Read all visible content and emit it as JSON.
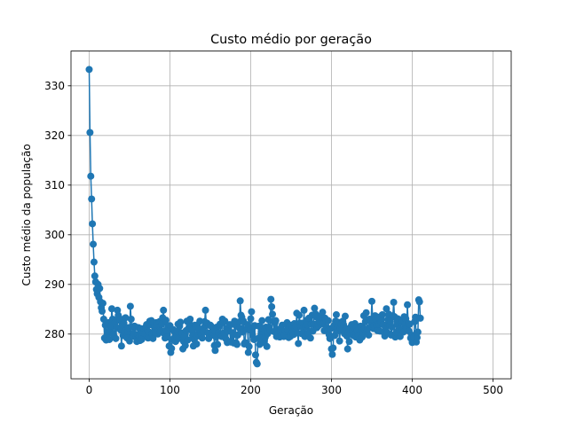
{
  "chart_data": {
    "type": "line",
    "title": "Custo médio por geração",
    "xlabel": "Geração",
    "ylabel": "Custo médio da população",
    "xlim": [
      -22.5,
      522.5
    ],
    "ylim": [
      271,
      337
    ],
    "xticks": [
      0,
      100,
      200,
      300,
      400,
      500
    ],
    "yticks": [
      280,
      290,
      300,
      310,
      320,
      330
    ],
    "grid": true,
    "marker": "circle",
    "color": "#1f77b4",
    "series": [
      {
        "values": [
          333.3,
          320.6,
          311.8,
          307.2,
          302.2,
          298.1,
          294.5,
          291.7,
          290.5,
          289.0,
          288.1,
          290.0,
          287.4,
          289.2,
          286.5,
          285.3,
          284.6,
          286.2,
          283.0,
          279.2,
          281.8,
          278.8,
          279.6,
          280.5,
          282.3,
          278.9,
          280.9,
          281.7,
          285.1,
          283.0,
          280.0,
          279.5,
          282.3,
          279.1,
          281.3,
          284.8,
          283.8,
          283.3,
          282.7,
          280.8,
          277.6,
          281.9,
          279.7,
          282.2,
          280.6,
          283.3,
          279.4,
          279.2,
          280.6,
          281.3,
          278.6,
          285.6,
          283.0,
          281.5,
          279.6,
          280.2,
          281.6,
          281.5,
          279.3,
          278.5,
          279.9,
          281.3,
          279.5,
          278.7,
          281.1,
          278.9,
          279.8,
          280.2,
          281.1,
          280.1,
          281.2,
          281.9,
          280.7,
          279.2,
          280.4,
          282.6,
          281.9,
          282.7,
          280.1,
          279.1,
          280.4,
          281.6,
          280.2,
          282.3,
          281.9,
          280.0,
          280.6,
          282.5,
          280.4,
          280.7,
          282.0,
          283.3,
          284.8,
          280.1,
          279.2,
          282.8,
          280.7,
          279.4,
          281.5,
          277.6,
          281.7,
          276.3,
          277.1,
          278.9,
          280.9,
          280.6,
          279.4,
          278.5,
          279.6,
          280.6,
          282.0,
          279.1,
          281.6,
          282.4,
          280.0,
          280.2,
          277.0,
          278.5,
          279.6,
          277.7,
          280.7,
          282.6,
          278.8,
          281.1,
          282.5,
          283.0,
          281.5,
          280.7,
          279.7,
          277.6,
          278.9,
          281.8,
          281.6,
          278.0,
          279.6,
          280.1,
          280.9,
          282.6,
          280.2,
          279.8,
          279.2,
          280.5,
          281.3,
          282.5,
          284.8,
          281.8,
          282.2,
          280.2,
          279.1,
          279.5,
          281.8,
          281.6,
          279.8,
          280.3,
          280.8,
          277.7,
          276.7,
          279.4,
          281.4,
          277.9,
          280.2,
          281.6,
          282.0,
          279.8,
          279.5,
          283.0,
          282.4,
          280.2,
          282.6,
          279.1,
          281.1,
          278.3,
          280.6,
          281.4,
          281.9,
          278.4,
          278.6,
          280.3,
          279.8,
          278.2,
          282.6,
          281.8,
          278.2,
          277.9,
          279.8,
          282.4,
          281.2,
          286.7,
          283.8,
          283.4,
          280.4,
          282.6,
          278.0,
          278.3,
          280.9,
          281.0,
          281.9,
          276.3,
          277.5,
          280.8,
          283.1,
          284.5,
          279.8,
          281.4,
          278.9,
          281.7,
          275.8,
          274.3,
          274.0,
          279.1,
          281.6,
          277.9,
          279.4,
          280.5,
          282.7,
          281.1,
          278.3,
          280.8,
          279.4,
          281.4,
          277.5,
          280.1,
          282.9,
          281.4,
          280.7,
          287.0,
          285.5,
          284.0,
          282.6,
          280.5,
          282.2,
          282.7,
          279.5,
          281.0,
          280.1,
          280.6,
          279.4,
          281.0,
          279.7,
          281.8,
          280.3,
          279.5,
          279.8,
          280.6,
          281.9,
          282.3,
          280.9,
          279.3,
          281.4,
          279.5,
          281.8,
          281.0,
          280.5,
          279.9,
          282.1,
          281.2,
          281.5,
          284.2,
          280.2,
          278.1,
          283.8,
          282.2,
          281.5,
          280.1,
          282.2,
          281.2,
          284.8,
          279.5,
          281.5,
          282.7,
          281.9,
          280.2,
          283.2,
          280.5,
          279.2,
          282.0,
          283.8,
          280.6,
          282.0,
          285.2,
          284.1,
          283.5,
          281.3,
          282.2,
          281.7,
          282.8,
          283.5,
          282.0,
          283.9,
          284.4,
          282.1,
          280.7,
          283.2,
          282.8,
          281.3,
          280.6,
          282.7,
          279.9,
          279.1,
          281.1,
          277.0,
          275.9,
          277.2,
          281.7,
          279.7,
          282.6,
          283.9,
          281.3,
          282.4,
          280.7,
          278.6,
          281.2,
          282.0,
          280.8,
          282.6,
          281.9,
          280.1,
          283.6,
          281.1,
          279.6,
          277.0,
          280.3,
          278.5,
          280.1,
          281.4,
          281.9,
          280.6,
          279.7,
          281.2,
          282.1,
          279.4,
          281.3,
          280.7,
          280.0,
          279.8,
          278.8,
          281.6,
          280.6,
          279.4,
          280.3,
          283.7,
          281.0,
          282.5,
          284.3,
          280.6,
          281.1,
          279.8,
          283.0,
          281.4,
          282.5,
          286.6,
          283.0,
          281.1,
          281.7,
          283.7,
          283.0,
          281.8,
          280.7,
          283.4,
          281.9,
          280.6,
          282.3,
          283.0,
          283.9,
          281.9,
          280.3,
          279.6,
          281.0,
          285.1,
          280.3,
          282.9,
          284.0,
          281.8,
          282.6,
          279.8,
          281.4,
          283.7,
          286.4,
          283.5,
          279.4,
          280.3,
          282.0,
          283.1,
          282.6,
          281.0,
          279.5,
          282.3,
          282.8,
          280.9,
          280.4,
          283.5,
          282.0,
          283.1,
          281.2,
          285.9,
          282.1,
          280.6,
          282.0,
          279.2,
          279.8,
          278.3,
          279.7,
          279.4,
          282.5,
          283.4,
          278.4,
          279.3,
          280.4,
          286.9,
          286.5,
          283.2
        ]
      }
    ]
  }
}
